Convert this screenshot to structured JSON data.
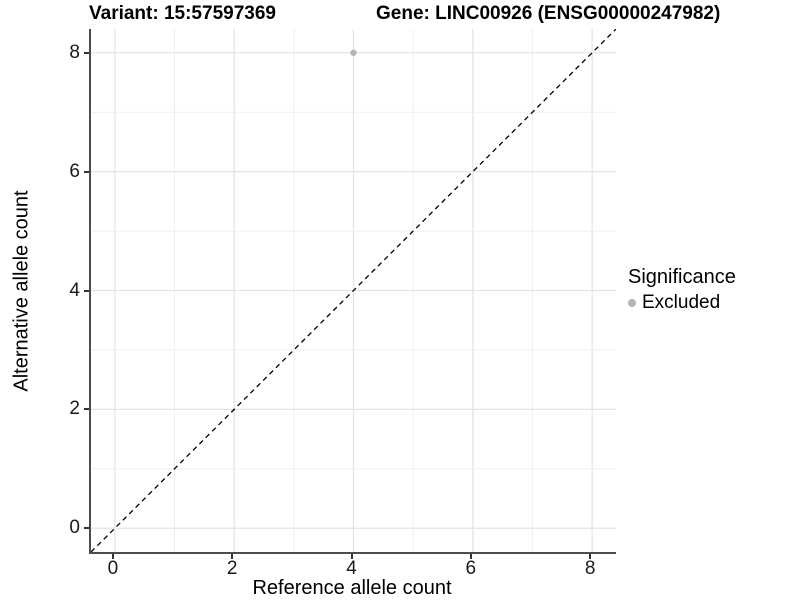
{
  "titles": {
    "variant": "Variant: 15:57597369",
    "gene": "Gene: LINC00926 (ENSG00000247982)"
  },
  "axes": {
    "x": {
      "label": "Reference allele count"
    },
    "y": {
      "label": "Alternative allele count"
    }
  },
  "legend": {
    "title": "Significance",
    "items": [
      {
        "label": "Excluded",
        "color": "#b4b4b4",
        "marker": "circle-icon"
      }
    ]
  },
  "colors": {
    "background": "#ffffff",
    "grid_major": "#e4e4e4",
    "grid_minor": "#efefef",
    "axis_line": "#4d4d4d",
    "tick_mark": "#333333",
    "tick_label": "#1a1a1a",
    "title_text": "#000000",
    "point": "#b4b4b4",
    "identity_line": "#000000"
  },
  "chart_data": {
    "type": "scatter",
    "title_left": "Variant: 15:57597369",
    "title_right": "Gene: LINC00926 (ENSG00000247982)",
    "xlabel": "Reference allele count",
    "ylabel": "Alternative allele count",
    "xlim": [
      -0.4,
      8.4
    ],
    "ylim": [
      -0.4,
      8.4
    ],
    "x_ticks": [
      0,
      2,
      4,
      6,
      8
    ],
    "y_ticks": [
      0,
      2,
      4,
      6,
      8
    ],
    "grid_values_x": [
      0,
      1,
      2,
      3,
      4,
      5,
      6,
      7,
      8
    ],
    "grid_values_y": [
      0,
      1,
      2,
      3,
      4,
      5,
      6,
      7,
      8
    ],
    "grid": "on",
    "legend_position": "right",
    "legend_title": "Significance",
    "series": [
      {
        "name": "Excluded",
        "color": "#b4b4b4",
        "points": [
          {
            "x": 4,
            "y": 8
          }
        ]
      }
    ],
    "reference_line": {
      "type": "identity",
      "slope": 1,
      "intercept": 0,
      "style": "dashed",
      "color": "#000000"
    }
  }
}
